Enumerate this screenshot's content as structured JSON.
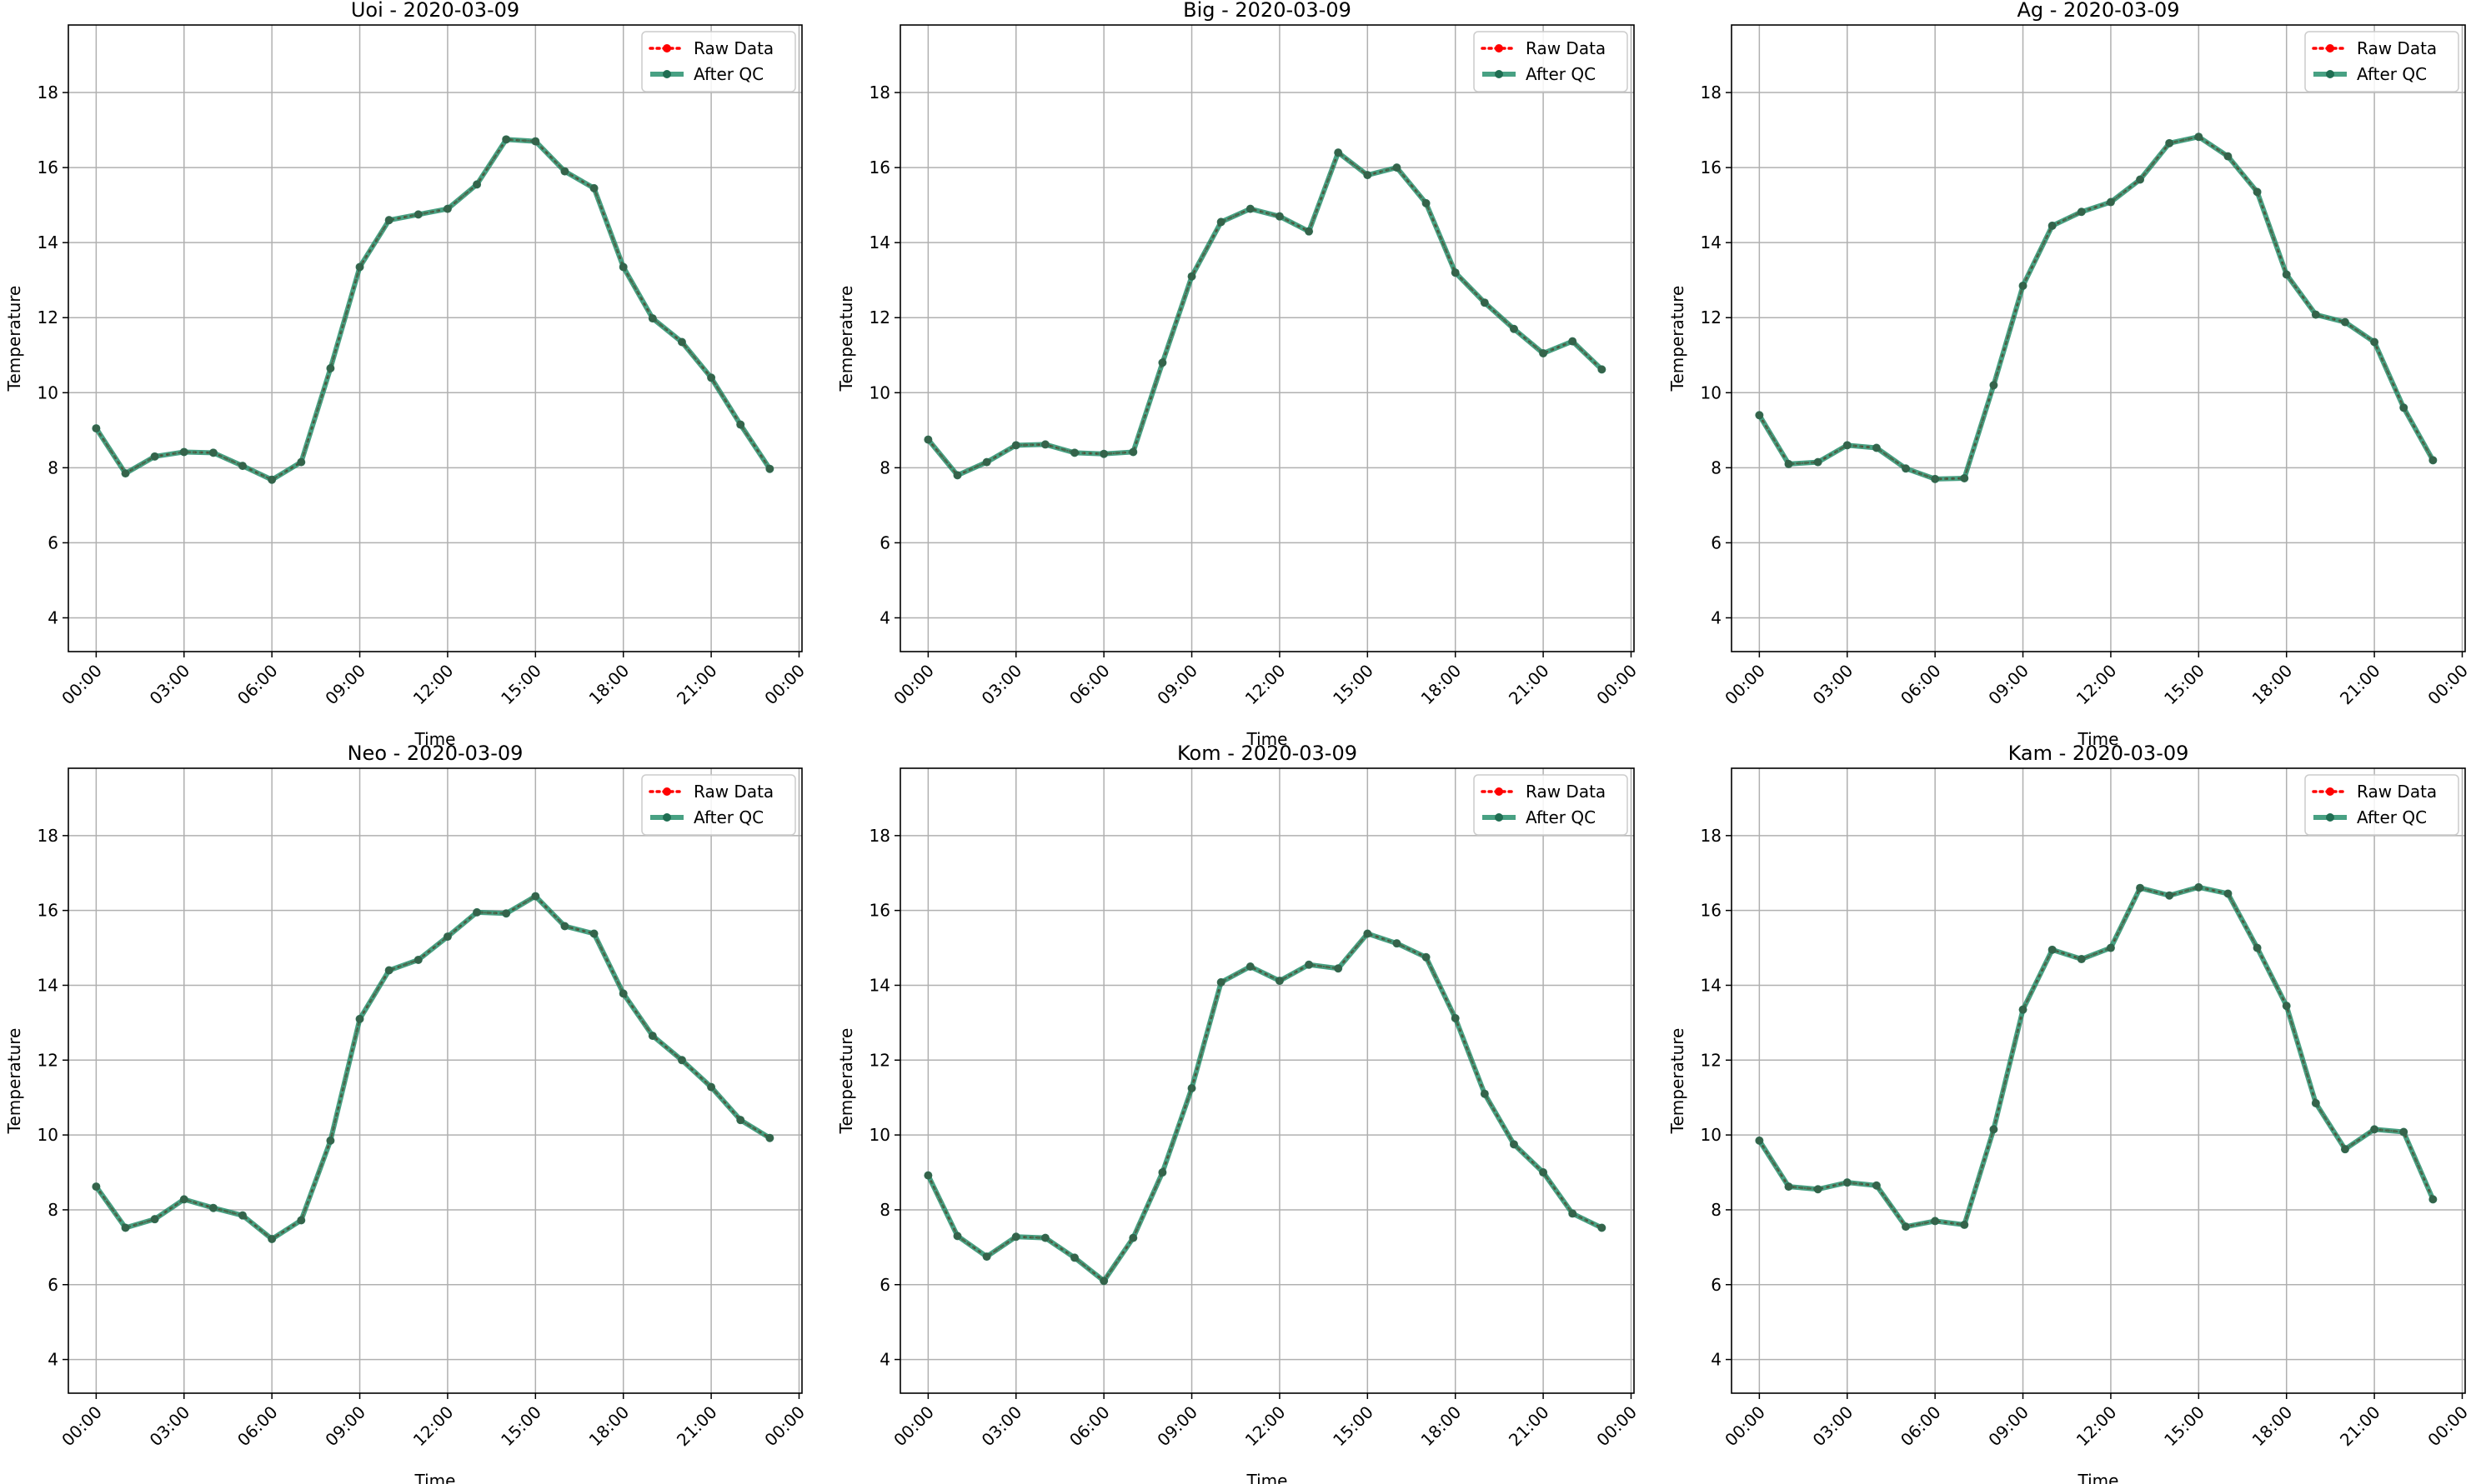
{
  "chart_data": [
    {
      "type": "line",
      "title": "Uoi - 2020-03-09",
      "xlabel": "Time",
      "ylabel": "Temperature",
      "xlim": [
        -0.95,
        24.1
      ],
      "ylim": [
        3.1,
        19.8
      ],
      "x_ticks": [
        "00:00",
        "03:00",
        "06:00",
        "09:00",
        "12:00",
        "15:00",
        "18:00",
        "21:00",
        "00:00"
      ],
      "y_ticks": [
        4,
        6,
        8,
        10,
        12,
        14,
        16,
        18
      ],
      "grid": true,
      "legend_position": "top-right",
      "x_hours": [
        0,
        1,
        2,
        3,
        4,
        5,
        6,
        7,
        8,
        9,
        10,
        11,
        12,
        13,
        14,
        15,
        16,
        17,
        18,
        19,
        20,
        21,
        22,
        23
      ],
      "series": [
        {
          "name": "Raw Data",
          "values": [
            9.05,
            7.85,
            8.3,
            8.42,
            8.4,
            8.05,
            7.68,
            8.15,
            10.65,
            13.35,
            14.6,
            14.75,
            14.9,
            15.55,
            16.75,
            16.7,
            15.9,
            15.45,
            13.35,
            11.98,
            11.35,
            10.4,
            9.15,
            7.97
          ]
        },
        {
          "name": "After QC",
          "values": [
            9.05,
            7.85,
            8.3,
            8.42,
            8.4,
            8.05,
            7.68,
            8.15,
            10.65,
            13.35,
            14.6,
            14.75,
            14.9,
            15.55,
            16.75,
            16.7,
            15.9,
            15.45,
            13.35,
            11.98,
            11.35,
            10.4,
            9.15,
            7.97
          ]
        }
      ]
    },
    {
      "type": "line",
      "title": "Big - 2020-03-09",
      "xlabel": "Time",
      "ylabel": "Temperature",
      "xlim": [
        -0.95,
        24.1
      ],
      "ylim": [
        3.1,
        19.8
      ],
      "x_ticks": [
        "00:00",
        "03:00",
        "06:00",
        "09:00",
        "12:00",
        "15:00",
        "18:00",
        "21:00",
        "00:00"
      ],
      "y_ticks": [
        4,
        6,
        8,
        10,
        12,
        14,
        16,
        18
      ],
      "grid": true,
      "legend_position": "top-right",
      "x_hours": [
        0,
        1,
        2,
        3,
        4,
        5,
        6,
        7,
        8,
        9,
        10,
        11,
        12,
        13,
        14,
        15,
        16,
        17,
        18,
        19,
        20,
        21,
        22,
        23
      ],
      "series": [
        {
          "name": "Raw Data",
          "values": [
            8.75,
            7.8,
            8.15,
            8.6,
            8.62,
            8.4,
            8.37,
            8.42,
            10.8,
            13.1,
            14.55,
            14.9,
            14.7,
            14.3,
            16.4,
            15.8,
            16.0,
            15.05,
            13.2,
            12.4,
            11.7,
            11.05,
            11.37,
            10.62
          ]
        },
        {
          "name": "After QC",
          "values": [
            8.75,
            7.8,
            8.15,
            8.6,
            8.62,
            8.4,
            8.37,
            8.42,
            10.8,
            13.1,
            14.55,
            14.9,
            14.7,
            14.3,
            16.4,
            15.8,
            16.0,
            15.05,
            13.2,
            12.4,
            11.7,
            11.05,
            11.37,
            10.62
          ]
        }
      ]
    },
    {
      "type": "line",
      "title": "Ag - 2020-03-09",
      "xlabel": "Time",
      "ylabel": "Temperature",
      "xlim": [
        -0.95,
        24.1
      ],
      "ylim": [
        3.1,
        19.8
      ],
      "x_ticks": [
        "00:00",
        "03:00",
        "06:00",
        "09:00",
        "12:00",
        "15:00",
        "18:00",
        "21:00",
        "00:00"
      ],
      "y_ticks": [
        4,
        6,
        8,
        10,
        12,
        14,
        16,
        18
      ],
      "grid": true,
      "legend_position": "top-right",
      "x_hours": [
        0,
        1,
        2,
        3,
        4,
        5,
        6,
        7,
        8,
        9,
        10,
        11,
        12,
        13,
        14,
        15,
        16,
        17,
        18,
        19,
        20,
        21,
        22,
        23
      ],
      "series": [
        {
          "name": "Raw Data",
          "values": [
            9.4,
            8.1,
            8.15,
            8.6,
            8.53,
            7.98,
            7.7,
            7.72,
            10.2,
            12.85,
            14.45,
            14.82,
            15.08,
            15.68,
            16.65,
            16.82,
            16.3,
            15.35,
            13.15,
            12.08,
            11.88,
            11.35,
            9.6,
            8.2
          ]
        },
        {
          "name": "After QC",
          "values": [
            9.4,
            8.1,
            8.15,
            8.6,
            8.53,
            7.98,
            7.7,
            7.72,
            10.2,
            12.85,
            14.45,
            14.82,
            15.08,
            15.68,
            16.65,
            16.82,
            16.3,
            15.35,
            13.15,
            12.08,
            11.88,
            11.35,
            9.6,
            8.2
          ]
        }
      ]
    },
    {
      "type": "line",
      "title": "Neo - 2020-03-09",
      "xlabel": "Time",
      "ylabel": "Temperature",
      "xlim": [
        -0.95,
        24.1
      ],
      "ylim": [
        3.1,
        19.8
      ],
      "x_ticks": [
        "00:00",
        "03:00",
        "06:00",
        "09:00",
        "12:00",
        "15:00",
        "18:00",
        "21:00",
        "00:00"
      ],
      "y_ticks": [
        4,
        6,
        8,
        10,
        12,
        14,
        16,
        18
      ],
      "grid": true,
      "legend_position": "top-right",
      "x_hours": [
        0,
        1,
        2,
        3,
        4,
        5,
        6,
        7,
        8,
        9,
        10,
        11,
        12,
        13,
        14,
        15,
        16,
        17,
        18,
        19,
        20,
        21,
        22,
        23
      ],
      "series": [
        {
          "name": "Raw Data",
          "values": [
            8.62,
            7.52,
            7.75,
            8.28,
            8.05,
            7.85,
            7.22,
            7.72,
            9.85,
            13.1,
            14.4,
            14.68,
            15.3,
            15.95,
            15.92,
            16.38,
            15.58,
            15.38,
            13.78,
            12.65,
            12.0,
            11.28,
            10.4,
            9.92
          ]
        },
        {
          "name": "After QC",
          "values": [
            8.62,
            7.52,
            7.75,
            8.28,
            8.05,
            7.85,
            7.22,
            7.72,
            9.85,
            13.1,
            14.4,
            14.68,
            15.3,
            15.95,
            15.92,
            16.38,
            15.58,
            15.38,
            13.78,
            12.65,
            12.0,
            11.28,
            10.4,
            9.92
          ]
        }
      ]
    },
    {
      "type": "line",
      "title": "Kom - 2020-03-09",
      "xlabel": "Time",
      "ylabel": "Temperature",
      "xlim": [
        -0.95,
        24.1
      ],
      "ylim": [
        3.1,
        19.8
      ],
      "x_ticks": [
        "00:00",
        "03:00",
        "06:00",
        "09:00",
        "12:00",
        "15:00",
        "18:00",
        "21:00",
        "00:00"
      ],
      "y_ticks": [
        4,
        6,
        8,
        10,
        12,
        14,
        16,
        18
      ],
      "grid": true,
      "legend_position": "top-right",
      "x_hours": [
        0,
        1,
        2,
        3,
        4,
        5,
        6,
        7,
        8,
        9,
        10,
        11,
        12,
        13,
        14,
        15,
        16,
        17,
        18,
        19,
        20,
        21,
        22,
        23
      ],
      "series": [
        {
          "name": "Raw Data",
          "values": [
            8.92,
            7.3,
            6.75,
            7.28,
            7.25,
            6.72,
            6.1,
            7.25,
            9.0,
            11.25,
            14.08,
            14.5,
            14.12,
            14.55,
            14.45,
            15.38,
            15.12,
            14.75,
            13.12,
            11.1,
            9.75,
            9.0,
            7.9,
            7.52
          ]
        },
        {
          "name": "After QC",
          "values": [
            8.92,
            7.3,
            6.75,
            7.28,
            7.25,
            6.72,
            6.1,
            7.25,
            9.0,
            11.25,
            14.08,
            14.5,
            14.12,
            14.55,
            14.45,
            15.38,
            15.12,
            14.75,
            13.12,
            11.1,
            9.75,
            9.0,
            7.9,
            7.52
          ]
        }
      ]
    },
    {
      "type": "line",
      "title": "Kam - 2020-03-09",
      "xlabel": "Time",
      "ylabel": "Temperature",
      "xlim": [
        -0.95,
        24.1
      ],
      "ylim": [
        3.1,
        19.8
      ],
      "x_ticks": [
        "00:00",
        "03:00",
        "06:00",
        "09:00",
        "12:00",
        "15:00",
        "18:00",
        "21:00",
        "00:00"
      ],
      "y_ticks": [
        4,
        6,
        8,
        10,
        12,
        14,
        16,
        18
      ],
      "grid": true,
      "legend_position": "top-right",
      "x_hours": [
        0,
        1,
        2,
        3,
        4,
        5,
        6,
        7,
        8,
        9,
        10,
        11,
        12,
        13,
        14,
        15,
        16,
        17,
        18,
        19,
        20,
        21,
        22,
        23
      ],
      "series": [
        {
          "name": "Raw Data",
          "values": [
            9.85,
            8.62,
            8.55,
            8.73,
            8.65,
            7.55,
            7.7,
            7.6,
            10.15,
            13.35,
            14.95,
            14.7,
            15.0,
            16.6,
            16.4,
            16.62,
            16.45,
            15.0,
            13.45,
            10.85,
            9.62,
            10.15,
            10.08,
            8.28
          ]
        },
        {
          "name": "After QC",
          "values": [
            9.85,
            8.62,
            8.55,
            8.73,
            8.65,
            7.55,
            7.7,
            7.6,
            10.15,
            13.35,
            14.95,
            14.7,
            15.0,
            16.6,
            16.4,
            16.62,
            16.45,
            15.0,
            13.45,
            10.85,
            9.62,
            10.15,
            10.08,
            8.28
          ]
        }
      ]
    }
  ],
  "colors": {
    "raw": "#ff0000",
    "qc": "#1a8a64",
    "grid": "#b0b0b0",
    "axis": "#000000"
  }
}
